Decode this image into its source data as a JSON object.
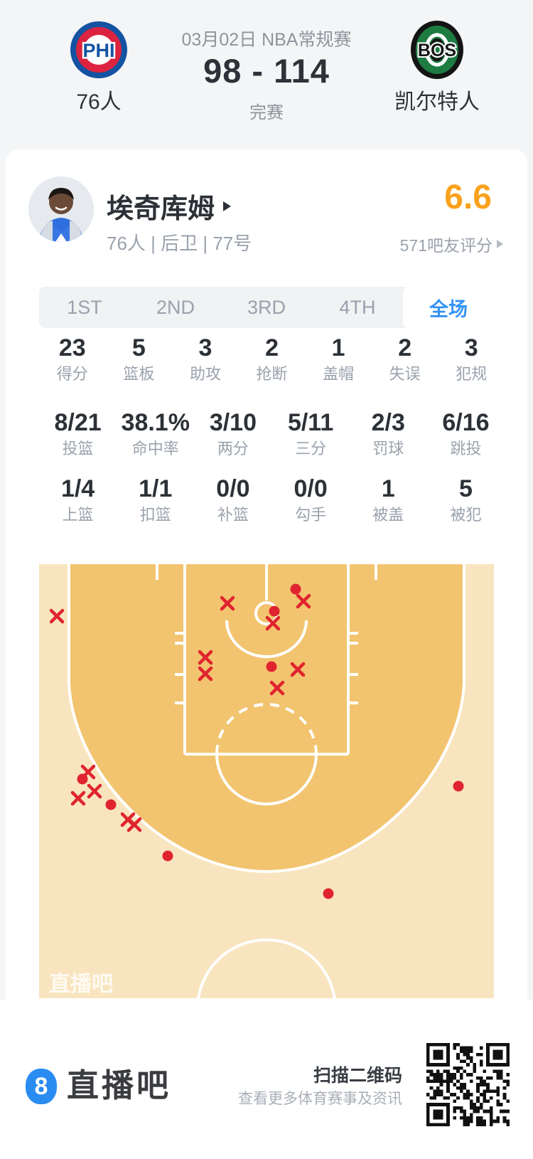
{
  "header": {
    "date": "03月02日 NBA常规赛",
    "score": "98 - 114",
    "status": "完赛",
    "teams": [
      {
        "abbr": "PHI",
        "name": "76人"
      },
      {
        "abbr": "BOS",
        "name": "凯尔特人"
      }
    ]
  },
  "player": {
    "name": "埃奇库姆",
    "meta": "76人 | 后卫 | 77号",
    "rating": "6.6",
    "rating_label": "571吧友评分"
  },
  "tabs": {
    "items": [
      "1ST",
      "2ND",
      "3RD",
      "4TH",
      "全场"
    ],
    "active_index": 4
  },
  "stats": {
    "rows": [
      [
        {
          "value": "23",
          "label": "得分"
        },
        {
          "value": "5",
          "label": "篮板"
        },
        {
          "value": "3",
          "label": "助攻"
        },
        {
          "value": "2",
          "label": "抢断"
        },
        {
          "value": "1",
          "label": "盖帽"
        },
        {
          "value": "2",
          "label": "失误"
        },
        {
          "value": "3",
          "label": "犯规"
        }
      ],
      [
        {
          "value": "8/21",
          "label": "投篮"
        },
        {
          "value": "38.1%",
          "label": "命中率"
        },
        {
          "value": "3/10",
          "label": "两分"
        },
        {
          "value": "5/11",
          "label": "三分"
        },
        {
          "value": "2/3",
          "label": "罚球"
        },
        {
          "value": "6/16",
          "label": "跳投"
        }
      ],
      [
        {
          "value": "1/4",
          "label": "上篮"
        },
        {
          "value": "1/1",
          "label": "扣篮"
        },
        {
          "value": "0/0",
          "label": "补篮"
        },
        {
          "value": "0/0",
          "label": "勾手"
        },
        {
          "value": "1",
          "label": "被盖"
        },
        {
          "value": "5",
          "label": "被犯"
        }
      ]
    ]
  },
  "chart_data": {
    "type": "scatter",
    "title": "player shot chart (half court)",
    "coord_space": [
      640,
      610
    ],
    "legend": {
      "make": "red dot",
      "miss": "red x"
    },
    "makes": [
      [
        361,
        35
      ],
      [
        331,
        66
      ],
      [
        327,
        144
      ],
      [
        61,
        302
      ],
      [
        101,
        338
      ],
      [
        181,
        410
      ],
      [
        407,
        463
      ],
      [
        590,
        312
      ]
    ],
    "misses": [
      [
        372,
        52
      ],
      [
        265,
        55
      ],
      [
        329,
        83
      ],
      [
        234,
        131
      ],
      [
        234,
        154
      ],
      [
        364,
        148
      ],
      [
        335,
        174
      ],
      [
        25,
        73
      ],
      [
        69,
        292
      ],
      [
        78,
        319
      ],
      [
        55,
        329
      ],
      [
        125,
        359
      ],
      [
        134,
        366
      ]
    ],
    "watermark": "直播吧"
  },
  "footer": {
    "badge": "8",
    "brand": "直播吧",
    "scan_title": "扫描二维码",
    "scan_sub": "查看更多体育赛事及资讯"
  },
  "colors": {
    "accent_blue": "#3493f4",
    "rating_orange": "#faa21d",
    "marker_red": "#e0242f",
    "court_dark": "#f2c46f",
    "court_light": "#f8e5bf",
    "header_bg": "#f4f5f6"
  }
}
